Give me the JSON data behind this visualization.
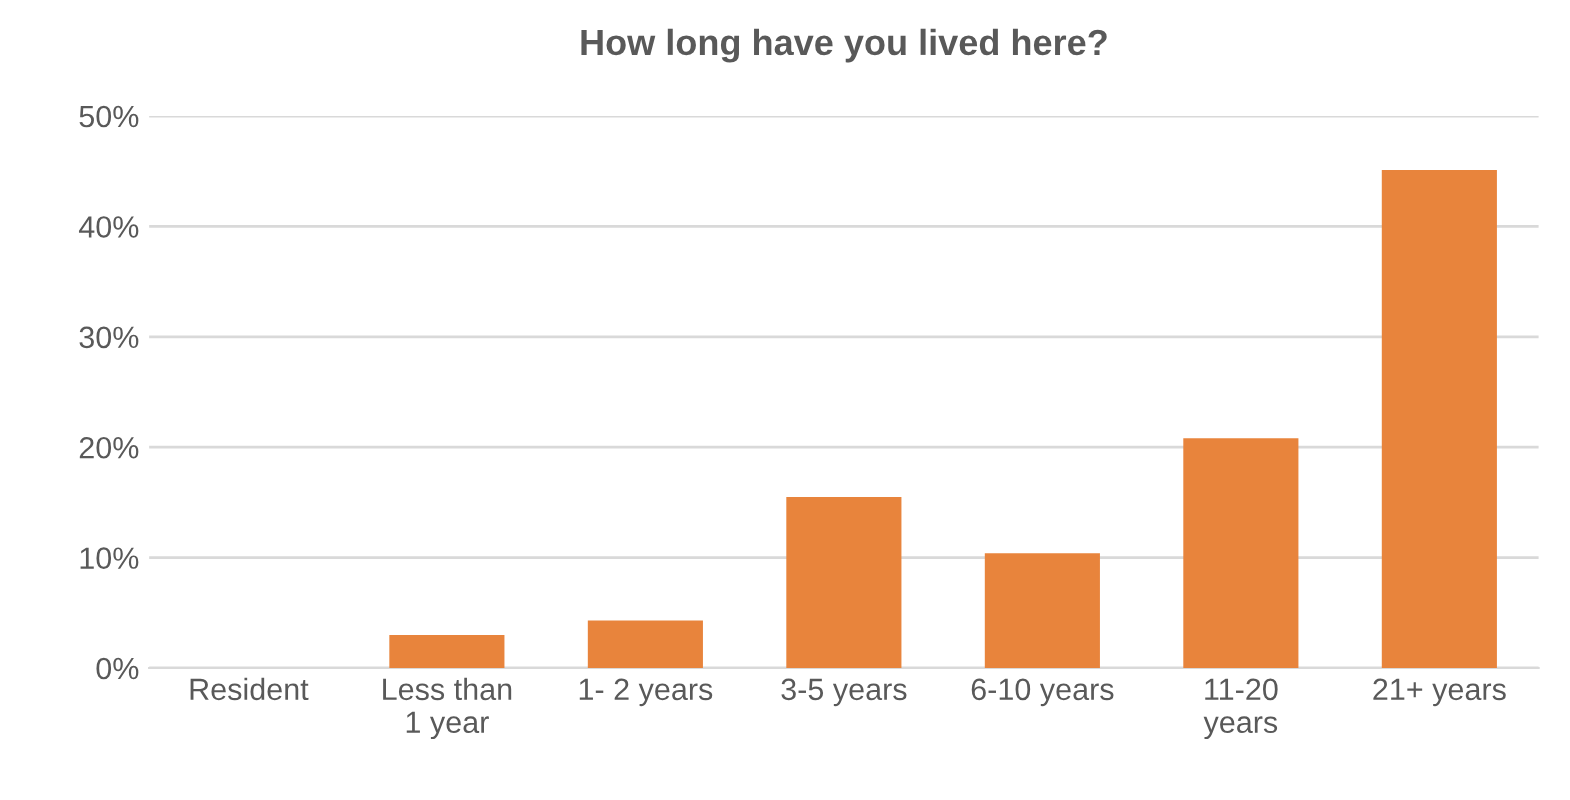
{
  "chart_data": {
    "type": "bar",
    "title": "How long have you lived here?",
    "categories": [
      "Resident",
      "Less than\n1 year",
      "1- 2 years",
      "3-5 years",
      "6-10 years",
      "11-20\nyears",
      "21+ years"
    ],
    "values": [
      0,
      3,
      4.3,
      15.5,
      10.4,
      20.8,
      45.1
    ],
    "color": "#e8843c",
    "ylim": [
      0,
      50
    ],
    "yticks": [
      {
        "value": 0,
        "label": "0%"
      },
      {
        "value": 10,
        "label": "10%"
      },
      {
        "value": 20,
        "label": "20%"
      },
      {
        "value": 30,
        "label": "30%"
      },
      {
        "value": 40,
        "label": "40%"
      },
      {
        "value": 50,
        "label": "50%"
      }
    ],
    "grid": "y"
  }
}
